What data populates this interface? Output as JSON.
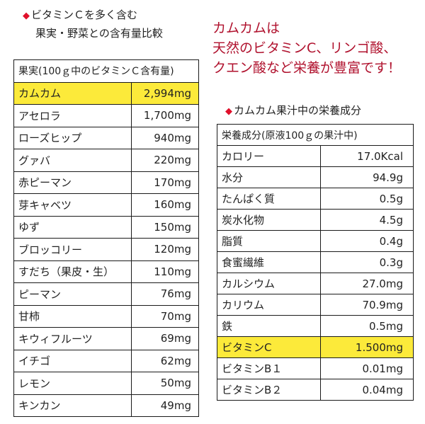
{
  "left_heading": {
    "line1": "ビタミンＣを多く含む",
    "line2": "果実・野菜との含有量比較"
  },
  "headline": {
    "line1": "カムカムは",
    "line2": "天然のビタミンC、リンゴ酸、",
    "line3": "クエン酸など栄養が豊富です！"
  },
  "right_heading": "カムカム果汁中の栄養成分",
  "vitamin_table": {
    "header": "果実(100ｇ中のビタミンＣ含有量)",
    "rows": [
      {
        "name": "カムカム",
        "value": "2,994mg"
      },
      {
        "name": "アセロラ",
        "value": "1,700mg"
      },
      {
        "name": "ローズヒップ",
        "value": "940mg"
      },
      {
        "name": "グァバ",
        "value": "220mg"
      },
      {
        "name": "赤ピーマン",
        "value": "170mg"
      },
      {
        "name": "芽キャベツ",
        "value": "160mg"
      },
      {
        "name": "ゆず",
        "value": "150mg"
      },
      {
        "name": "ブロッコリー",
        "value": "120mg"
      },
      {
        "name": "すだち（果皮・生）",
        "value": "110mg"
      },
      {
        "name": "ピーマン",
        "value": "76mg"
      },
      {
        "name": "甘柿",
        "value": "70mg"
      },
      {
        "name": "キウィフルーツ",
        "value": "69mg"
      },
      {
        "name": "イチゴ",
        "value": "62mg"
      },
      {
        "name": "レモン",
        "value": "50mg"
      },
      {
        "name": "キンカン",
        "value": "49mg"
      }
    ]
  },
  "nutrition_table": {
    "header": "栄養成分(原液100ｇの果汁中)",
    "rows": [
      {
        "name": "カロリー",
        "value": "17.0Kcal"
      },
      {
        "name": "水分",
        "value": "94.9g"
      },
      {
        "name": "たんぱく質",
        "value": "0.5g"
      },
      {
        "name": "炭水化物",
        "value": "4.5g"
      },
      {
        "name": "脂質",
        "value": "0.4g"
      },
      {
        "name": "食蜜繊維",
        "value": "0.3g"
      },
      {
        "name": "カルシウム",
        "value": "27.0mg"
      },
      {
        "name": "カリウム",
        "value": "70.9mg"
      },
      {
        "name": "鉄",
        "value": "0.5mg"
      },
      {
        "name": "ビタミンC",
        "value": "1.500mg"
      },
      {
        "name": "ビタミンB１",
        "value": "0.01mg"
      },
      {
        "name": "ビタミンB２",
        "value": "0.04mg"
      }
    ]
  },
  "colors": {
    "highlight": "#fcea3a",
    "accent_red": "#b0122e",
    "diamond": "#e0102b"
  },
  "icons": {
    "bullet": "diamond-icon"
  }
}
